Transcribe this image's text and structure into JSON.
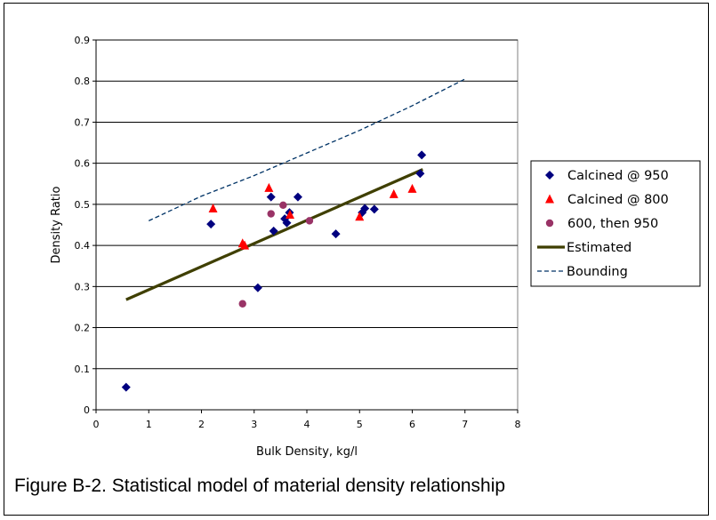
{
  "caption": "Figure B-2. Statistical model of material density relationship",
  "chart_data": {
    "type": "scatter",
    "xlabel": "Bulk Density, kg/l",
    "ylabel": "Density Ratio",
    "xlim": [
      0,
      8
    ],
    "ylim": [
      0,
      0.9
    ],
    "xticks": [
      "0",
      "1",
      "2",
      "3",
      "4",
      "5",
      "6",
      "7",
      "8"
    ],
    "yticks": [
      "0",
      "0.1",
      "0.2",
      "0.3",
      "0.4",
      "0.5",
      "0.6",
      "0.7",
      "0.8",
      "0.9"
    ],
    "grid": "horizontal",
    "legend_position": "right",
    "series": [
      {
        "name": "Calcined @ 950",
        "kind": "scatter",
        "marker": "diamond",
        "color": "#00007f",
        "points": [
          [
            0.57,
            0.055
          ],
          [
            2.18,
            0.452
          ],
          [
            3.07,
            0.297
          ],
          [
            3.32,
            0.518
          ],
          [
            3.37,
            0.435
          ],
          [
            3.58,
            0.465
          ],
          [
            3.62,
            0.455
          ],
          [
            3.67,
            0.48
          ],
          [
            3.83,
            0.518
          ],
          [
            4.55,
            0.428
          ],
          [
            5.05,
            0.48
          ],
          [
            5.1,
            0.49
          ],
          [
            5.28,
            0.488
          ],
          [
            6.15,
            0.575
          ],
          [
            6.18,
            0.62
          ]
        ]
      },
      {
        "name": "Calcined @ 800",
        "kind": "scatter",
        "marker": "triangle",
        "color": "#ff0000",
        "points": [
          [
            2.22,
            0.49
          ],
          [
            2.78,
            0.405
          ],
          [
            2.82,
            0.4
          ],
          [
            3.28,
            0.54
          ],
          [
            3.68,
            0.475
          ],
          [
            5.0,
            0.47
          ],
          [
            5.65,
            0.525
          ],
          [
            6.0,
            0.538
          ]
        ]
      },
      {
        "name": "600, then 950",
        "kind": "scatter",
        "marker": "circle",
        "color": "#993366",
        "points": [
          [
            2.78,
            0.258
          ],
          [
            3.32,
            0.477
          ],
          [
            3.55,
            0.498
          ],
          [
            4.05,
            0.46
          ]
        ]
      },
      {
        "name": "Estimated",
        "kind": "line",
        "style": "solid",
        "color": "#3f3f00",
        "points": [
          [
            0.57,
            0.268
          ],
          [
            6.2,
            0.585
          ]
        ]
      },
      {
        "name": "Bounding",
        "kind": "line",
        "style": "dashed",
        "color": "#003366",
        "points": [
          [
            1.0,
            0.46
          ],
          [
            2.0,
            0.52
          ],
          [
            3.0,
            0.57
          ],
          [
            4.0,
            0.625
          ],
          [
            5.0,
            0.68
          ],
          [
            6.0,
            0.74
          ],
          [
            7.0,
            0.805
          ]
        ]
      }
    ]
  }
}
